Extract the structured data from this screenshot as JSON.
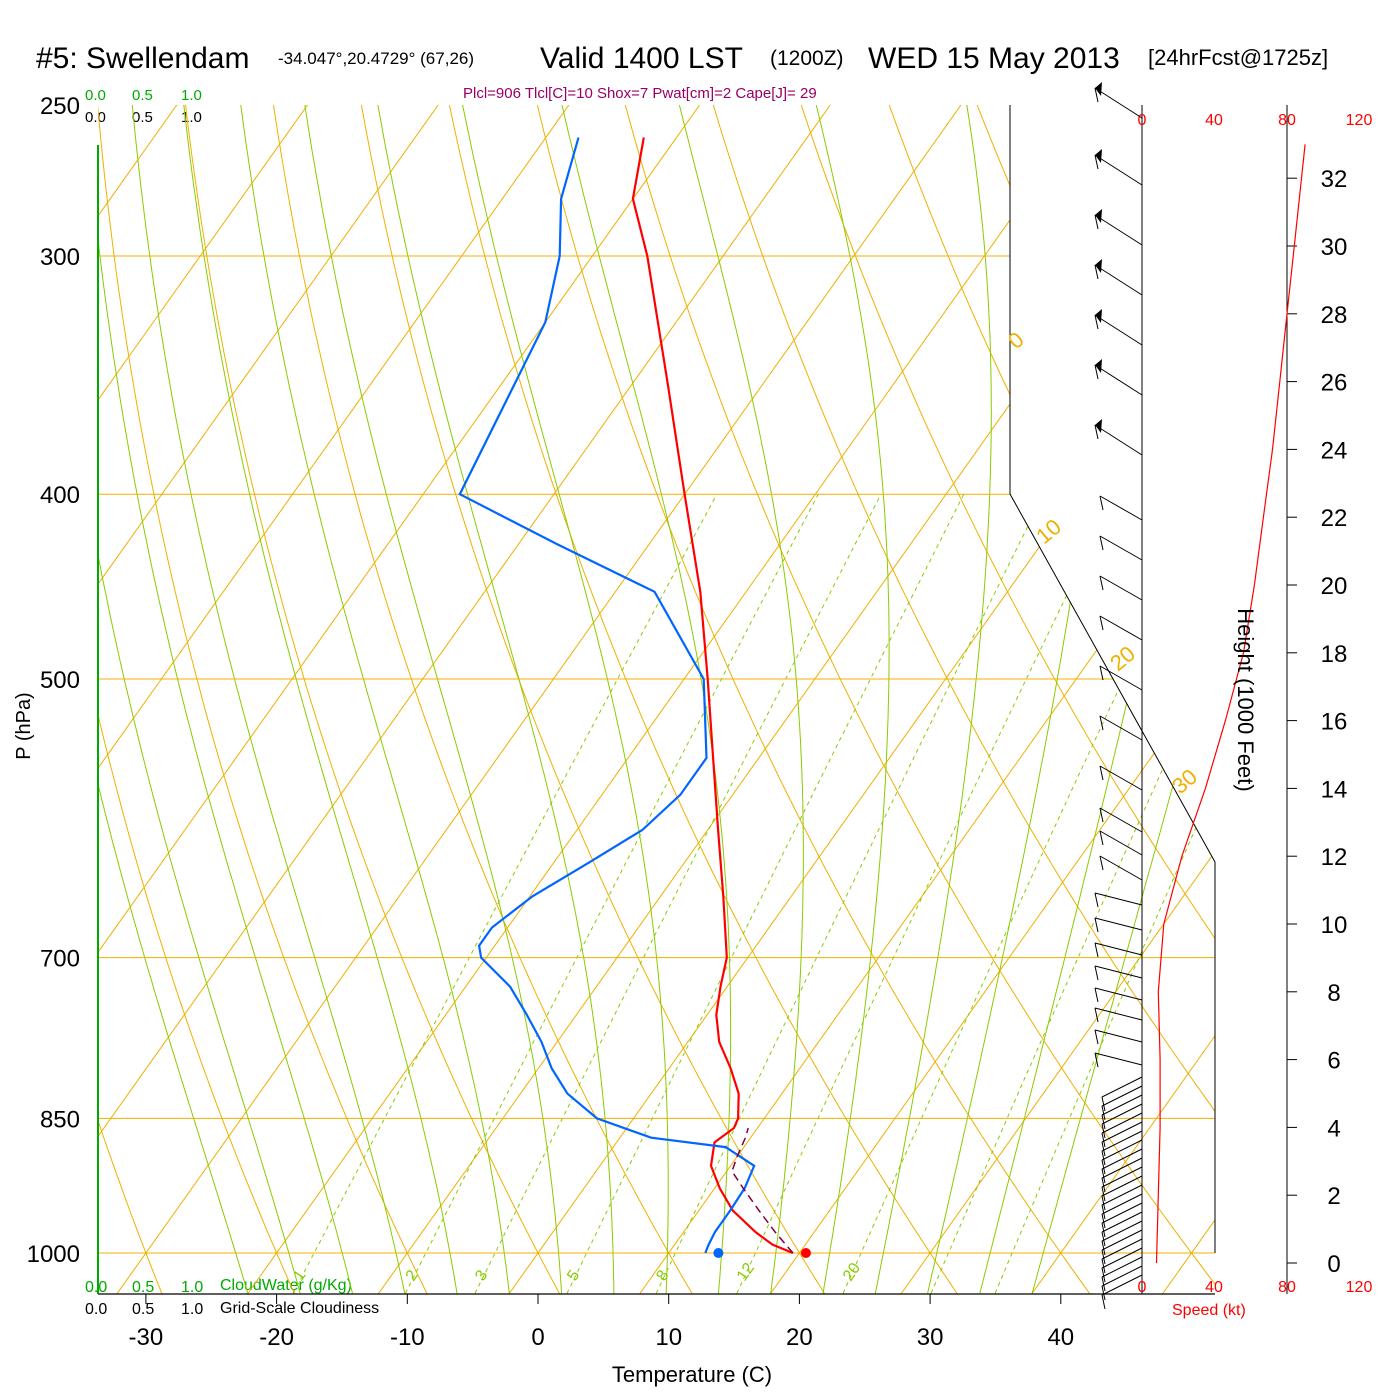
{
  "header": {
    "station": "#5: Swellendam",
    "coords": "-34.047°,20.4729° (67,26)",
    "valid": "Valid 1400 LST",
    "zulu": "(1200Z)",
    "date": "WED 15 May 2013",
    "forecast": "[24hrFcst@1725z]",
    "params": "Plcl=906 Tlcl[C]=10 Shox=7 Pwat[cm]=2 Cape[J]= 29"
  },
  "legend": {
    "cloudwater_ticks": [
      "0.0",
      "0.5",
      "1.0"
    ],
    "cloudiness_ticks": [
      "0.0",
      "0.5",
      "1.0"
    ],
    "cloudwater_label": "CloudWater (g/Kg)",
    "cloudiness_label": "Grid-Scale Cloudiness"
  },
  "speed_axis": {
    "ticks": [
      "0",
      "40",
      "80",
      "120"
    ],
    "label": "Speed (kt)"
  },
  "colors": {
    "temperature": "#ff0000",
    "dewpoint": "#0066ff",
    "parcel": "#800040",
    "isotherm": "#f0b000",
    "dry_adiabat": "#f0b000",
    "moist_adiabat": "#88cc00",
    "mixing_ratio": "#88cc00",
    "title_params": "#990066",
    "speed": "#ff0000",
    "legend_green": "#00aa00"
  },
  "chart_data": {
    "type": "line",
    "xlabel": "Temperature (C)",
    "ylabel": "P (hPa)",
    "y2label": "Height (1000 Feet)",
    "xlim": [
      -30,
      40
    ],
    "ylim": [
      1000,
      250
    ],
    "x_ticks": [
      -30,
      -20,
      -10,
      0,
      10,
      20,
      30,
      40
    ],
    "p_ticks": [
      250,
      300,
      400,
      500,
      700,
      850,
      1000
    ],
    "height_ticks": [
      0,
      2,
      4,
      6,
      8,
      10,
      12,
      14,
      16,
      18,
      20,
      22,
      24,
      26,
      28,
      30,
      32
    ],
    "isotherms_labeled": [
      10,
      0,
      -10,
      -20,
      -30
    ],
    "adiabats_labeled": [
      0,
      10,
      20,
      30
    ],
    "mixing_ratio_labels": [
      "1",
      "2",
      "3",
      "5",
      "8",
      "12",
      "20"
    ],
    "series": [
      {
        "key": "temperature",
        "p": [
          1000,
          990,
          975,
          950,
          925,
          900,
          875,
          860,
          850,
          825,
          800,
          775,
          750,
          725,
          700,
          650,
          600,
          550,
          500,
          450,
          400,
          350,
          300,
          280,
          260
        ],
        "t": [
          19.5,
          17.5,
          15.5,
          12.6,
          10.4,
          8.5,
          7.5,
          8.2,
          8.0,
          6.7,
          4.7,
          2.4,
          0.7,
          -0.5,
          -1.6,
          -5.2,
          -9.2,
          -13.5,
          -18.2,
          -23.5,
          -30.0,
          -37.3,
          -45.8,
          -50.0,
          -52.5
        ]
      },
      {
        "key": "dewpoint",
        "p": [
          1000,
          990,
          975,
          950,
          925,
          900,
          880,
          870,
          850,
          825,
          800,
          775,
          750,
          725,
          700,
          690,
          675,
          650,
          625,
          600,
          575,
          550,
          500,
          450,
          425,
          400,
          350,
          325,
          300,
          280,
          260
        ],
        "t": [
          12.8,
          12.6,
          12.4,
          12.4,
          12.3,
          11.8,
          8.6,
          2.4,
          -2.8,
          -6.4,
          -9.0,
          -11.2,
          -13.8,
          -16.6,
          -20.4,
          -21.2,
          -21.2,
          -19.8,
          -17.4,
          -15.0,
          -14.0,
          -14.0,
          -18.5,
          -27.0,
          -37.0,
          -47.2,
          -49.0,
          -50.0,
          -52.5,
          -55.5,
          -57.5
        ]
      },
      {
        "key": "parcel",
        "p": [
          1000,
          975,
          950,
          925,
          906,
          890,
          870,
          860
        ],
        "t": [
          19.5,
          17.0,
          14.6,
          12.2,
          10.4,
          10.0,
          9.6,
          9.3
        ]
      }
    ],
    "surface_points": {
      "t": 20.5,
      "td": 13.8
    },
    "wind_speed_profile": {
      "height_kft": [
        0,
        2,
        4,
        6,
        8,
        10,
        12,
        14,
        16,
        18,
        20,
        22,
        24,
        26,
        28,
        30,
        32,
        33
      ],
      "speed_kt": [
        8,
        9,
        10,
        10,
        9,
        12,
        22,
        35,
        46,
        56,
        62,
        67,
        72,
        76,
        80,
        84,
        88,
        90
      ]
    }
  }
}
